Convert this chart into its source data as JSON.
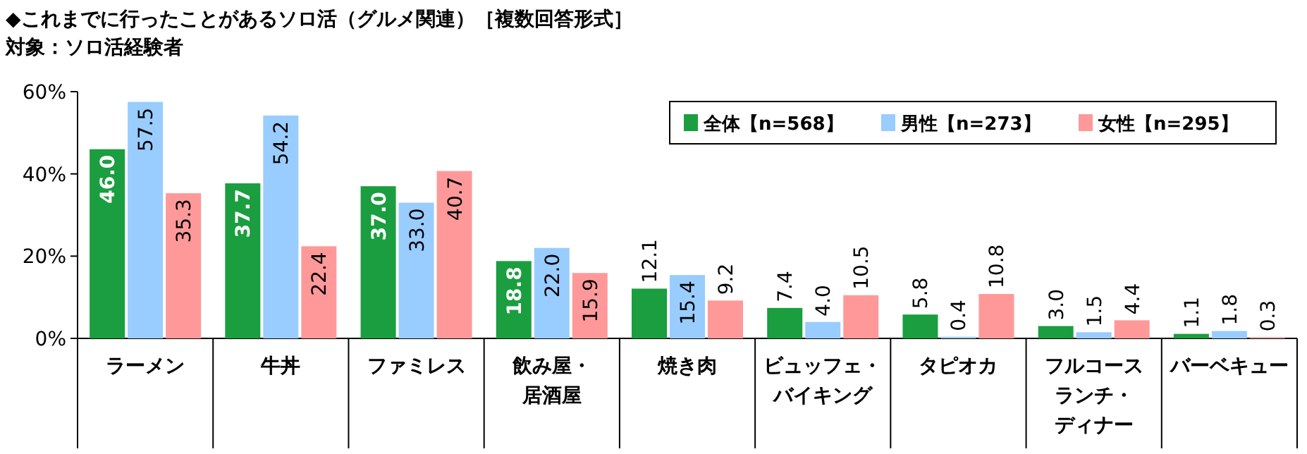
{
  "chart_data": {
    "type": "bar",
    "title": "◆これまでに行ったことがあるソロ活（グルメ関連）［複数回答形式］",
    "subtitle": "対象：ソロ活経験者",
    "categories": [
      "ラーメン",
      "牛丼",
      "ファミレス",
      "飲み屋・居酒屋",
      "焼き肉",
      "ビュッフェ・バイキング",
      "タピオカ",
      "フルコースランチ・ディナー",
      "バーベキュー"
    ],
    "series": [
      {
        "name": "全体【n=568】",
        "color": "#1a9e3f",
        "values": [
          46.0,
          37.7,
          37.0,
          18.8,
          12.1,
          7.4,
          5.8,
          3.0,
          1.1
        ],
        "value_labels": [
          "46.0",
          "37.7",
          "37.0",
          "18.8",
          "12.1",
          "7.4",
          "5.8",
          "3.0",
          "1.1"
        ]
      },
      {
        "name": "男性【n=273】",
        "color": "#99ccff",
        "values": [
          57.5,
          54.2,
          33.0,
          22.0,
          15.4,
          4.0,
          0.4,
          1.5,
          1.8
        ],
        "value_labels": [
          "57.5",
          "54.2",
          "33.0",
          "22.0",
          "15.4",
          "4.0",
          "0.4",
          "1.5",
          "1.8"
        ]
      },
      {
        "name": "女性【n=295】",
        "color": "#ff9999",
        "values": [
          35.3,
          22.4,
          40.7,
          15.9,
          9.2,
          10.5,
          10.8,
          4.4,
          0.3
        ],
        "value_labels": [
          "35.3",
          "22.4",
          "40.7",
          "15.9",
          "9.2",
          "10.5",
          "10.8",
          "4.4",
          "0.3"
        ]
      }
    ],
    "ylim": [
      0,
      60
    ],
    "yticks": [
      {
        "value": 0,
        "label": "0%"
      },
      {
        "value": 20,
        "label": "20%"
      },
      {
        "value": 40,
        "label": "40%"
      },
      {
        "value": 60,
        "label": "60%"
      }
    ],
    "grid": false,
    "legend": "top right"
  }
}
